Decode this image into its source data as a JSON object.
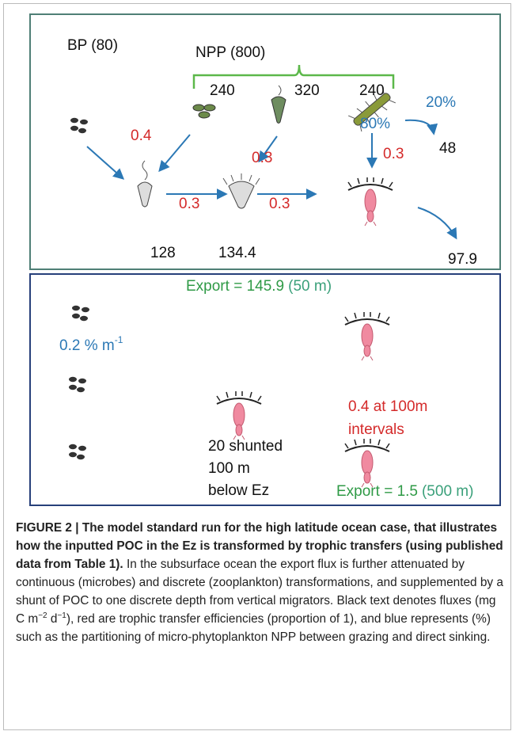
{
  "figure": {
    "upper": {
      "bp": "BP (80)",
      "npp": "NPP (800)",
      "npp_split": [
        "240",
        "320",
        "240"
      ],
      "pct_80": "80%",
      "pct_20": "20%",
      "sink": "48",
      "eff": [
        "0.4",
        "0.3",
        "0.3",
        "0.3",
        "0.3"
      ],
      "flux": [
        "128",
        "134.4",
        "97.9"
      ]
    },
    "lower": {
      "export_top": {
        "text": "Export = 145.9",
        "depth": "(50 m)"
      },
      "microbe_rate": {
        "text": "0.2 % m",
        "sup": "-1"
      },
      "zoo_eff": [
        "0.4 at 100m",
        "intervals"
      ],
      "shunt": [
        "20 shunted",
        "100 m",
        "below Ez"
      ],
      "export_bottom": {
        "text": "Export = 1.5",
        "depth": "(500 m)"
      }
    }
  },
  "caption": {
    "title": "FIGURE 2 | The model standard run for the high latitude ocean case, that illustrates how the inputted POC in the Ez is transformed by trophic transfers (using published data from Table 1).",
    "body": [
      " In the subsurface ocean the export flux is further attenuated by continuous (microbes) and discrete (zooplankton) transformations, and supplemented by a shunt of POC to one discrete depth from vertical migrators. Black text denotes fluxes (mg C m",
      "−2",
      " d",
      "−1",
      "), red are trophic transfer efficiencies (proportion of 1), and blue represents (%) such as the partitioning of micro-phytoplankton NPP between grazing and direct sinking."
    ]
  }
}
